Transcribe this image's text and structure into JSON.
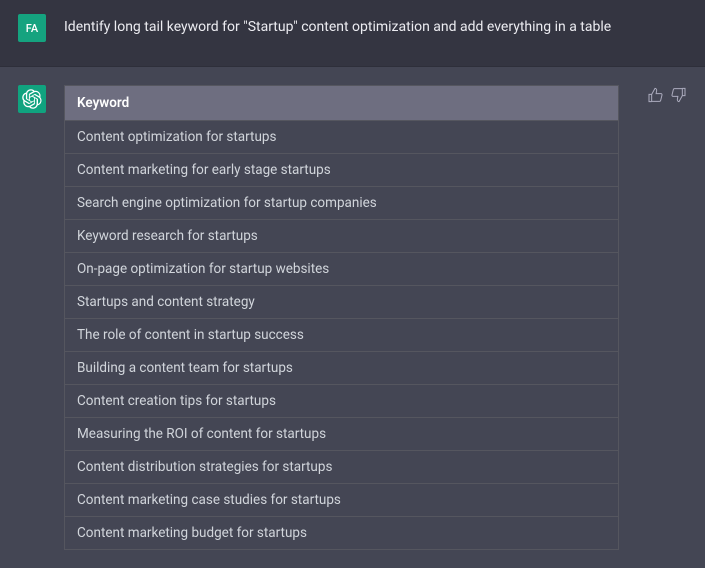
{
  "user": {
    "avatar_initials": "FA",
    "message": "Identify long tail keyword for \"Startup\" content optimization and add everything in a table"
  },
  "assistant": {
    "table": {
      "header": "Keyword",
      "rows": [
        "Content optimization for startups",
        "Content marketing for early stage startups",
        "Search engine optimization for startup companies",
        "Keyword research for startups",
        "On-page optimization for startup websites",
        "Startups and content strategy",
        "The role of content in startup success",
        "Building a content team for startups",
        "Content creation tips for startups",
        "Measuring the ROI of content for startups",
        "Content distribution strategies for startups",
        "Content marketing case studies for startups",
        "Content marketing budget for startups"
      ]
    }
  },
  "colors": {
    "page_bg": "#343541",
    "assistant_bg": "#444654",
    "avatar_bg": "#10a37f",
    "header_bg": "#6e6e80",
    "border": "#55565f",
    "text": "#d1d5db"
  }
}
